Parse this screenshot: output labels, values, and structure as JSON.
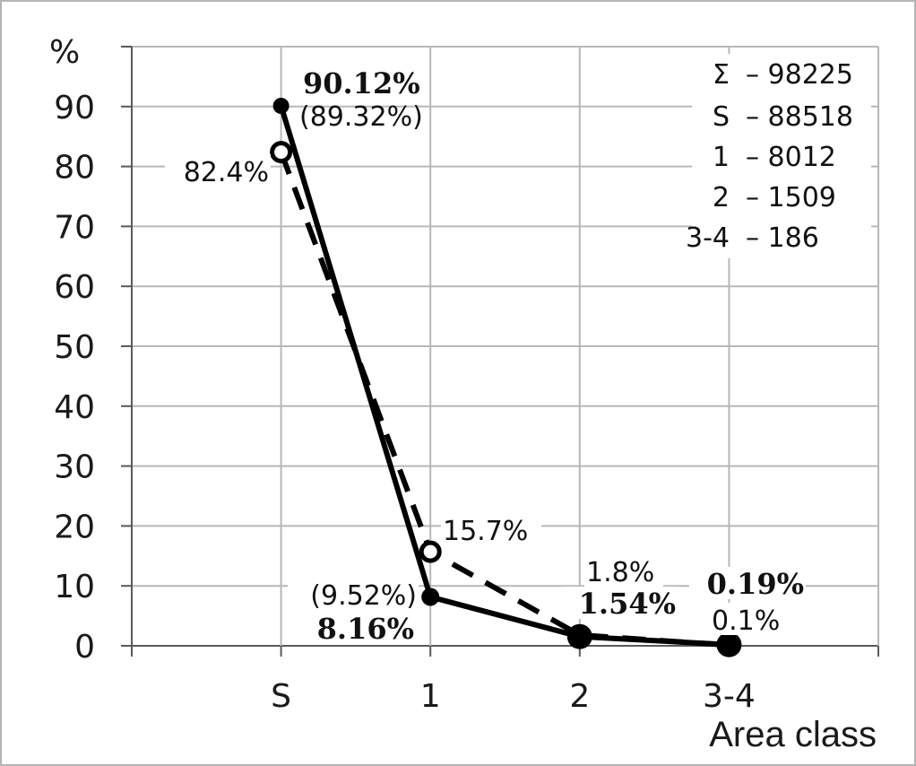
{
  "chart_data": {
    "type": "line",
    "ylabel": "%",
    "xlabel": "Area class",
    "ylim": [
      0,
      90
    ],
    "yticks": [
      "0",
      "10",
      "20",
      "30",
      "40",
      "50",
      "60",
      "70",
      "80",
      "90"
    ],
    "categories": [
      "S",
      "1",
      "2",
      "3-4"
    ],
    "grid": true,
    "series": [
      {
        "style": "solid-filled-markers",
        "values": [
          90.12,
          8.16,
          1.54,
          0.19
        ],
        "labels": [
          "90.12%",
          "8.16%",
          "1.54%",
          "0.19%"
        ],
        "secondary_labels": [
          "(89.32%)",
          "(9.52%)",
          "",
          ""
        ]
      },
      {
        "style": "dashed-open-markers",
        "values": [
          82.4,
          15.7,
          1.8,
          0.1
        ],
        "labels": [
          "82.4%",
          "15.7%",
          "1.8%",
          "0.1%"
        ]
      }
    ],
    "counts": [
      {
        "key": "Σ",
        "value": "– 98225"
      },
      {
        "key": "S",
        "value": "– 88518"
      },
      {
        "key": "1",
        "value": "– 8012"
      },
      {
        "key": "2",
        "value": "– 1509"
      },
      {
        "key": "3-4",
        "value": "– 186"
      }
    ]
  }
}
